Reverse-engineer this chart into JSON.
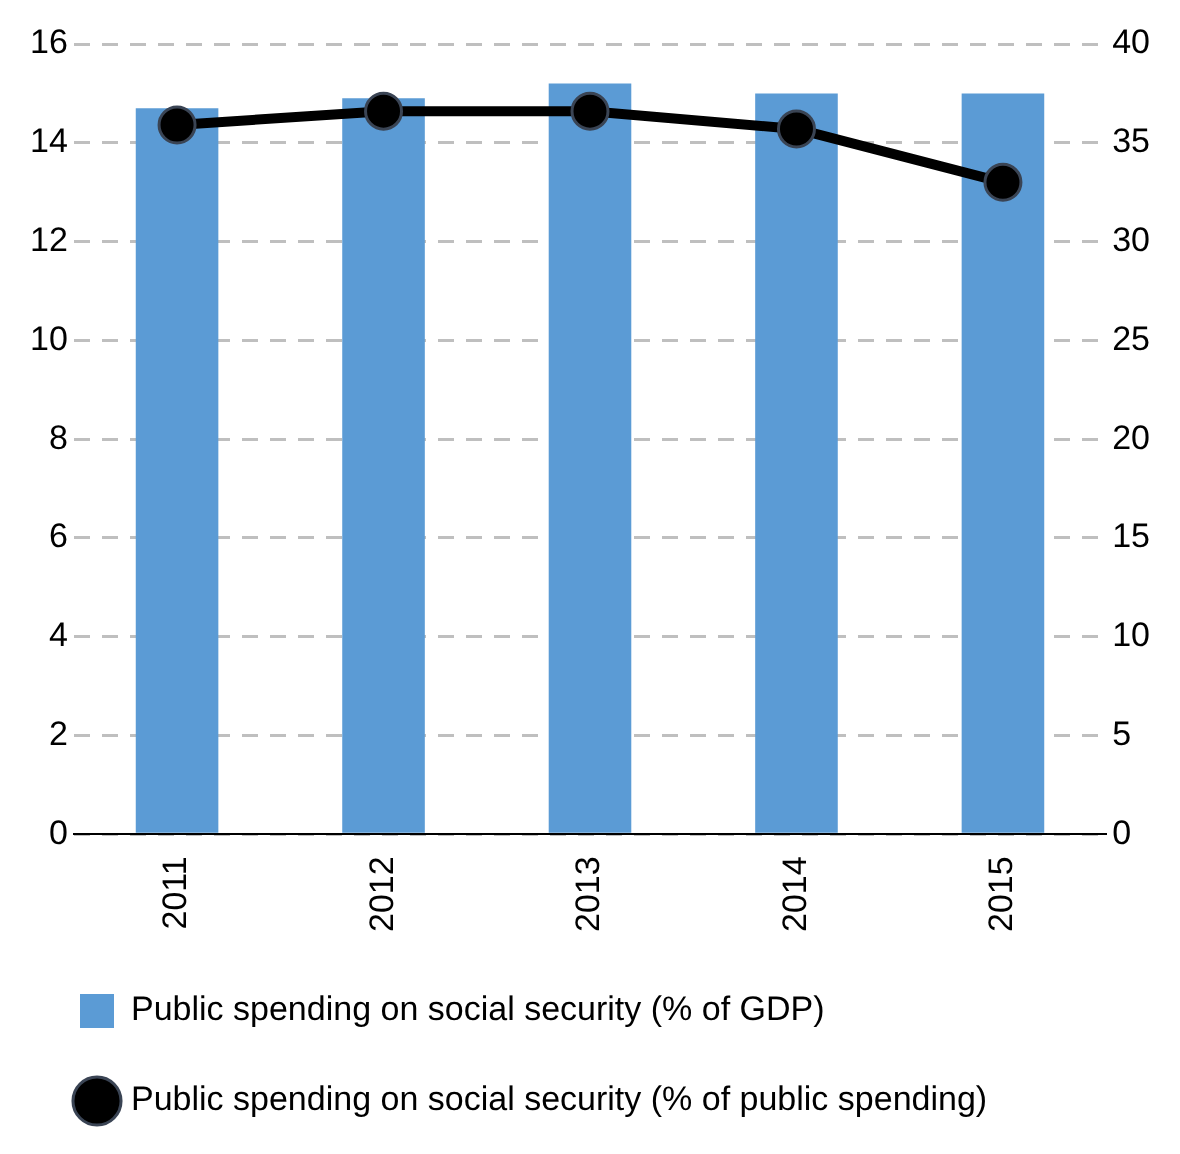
{
  "chart_data": {
    "type": "bar",
    "categories": [
      "2011",
      "2012",
      "2013",
      "2014",
      "2015"
    ],
    "series": [
      {
        "name": "Public spending on social security (% of GDP)",
        "color": "#5b9bd5",
        "values": [
          14.7,
          14.9,
          15.2,
          15.0,
          15.0
        ]
      },
      {
        "name": "Public spending on social security (% of public spending)",
        "type": "line",
        "axis": "y2",
        "color": "#000000",
        "marker": "circle",
        "values": [
          35.9,
          36.6,
          36.6,
          35.7,
          33.0
        ]
      }
    ],
    "ylim": [
      0,
      16
    ],
    "yticks": [
      0,
      2,
      4,
      6,
      8,
      10,
      12,
      14,
      16
    ],
    "y2lim": [
      0,
      40
    ],
    "y2ticks": [
      0,
      5,
      10,
      15,
      20,
      25,
      30,
      35,
      40
    ],
    "grid": "y",
    "legend": "bottom"
  }
}
